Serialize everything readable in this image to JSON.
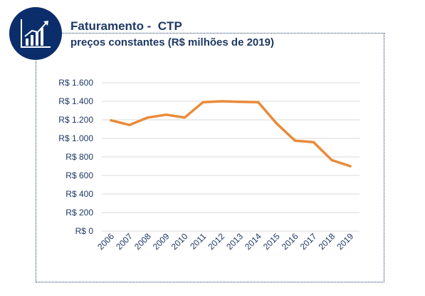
{
  "header": {
    "title": "Faturamento -  CTP",
    "subtitle": "preços constantes (R$ milhões de 2019)",
    "icon": "growth-chart-icon"
  },
  "colors": {
    "line": "#ea8a3a",
    "text": "#1f3864",
    "grid": "#d9d9d9",
    "badge": "#0b2e6b"
  },
  "chart_data": {
    "type": "line",
    "title": "",
    "xlabel": "",
    "ylabel": "",
    "x": [
      "2006",
      "2007",
      "2008",
      "2009",
      "2010",
      "2011",
      "2012",
      "2013",
      "2014",
      "2015",
      "2016",
      "2017",
      "2018",
      "2019"
    ],
    "series": [
      {
        "values": [
          1195,
          1145,
          1225,
          1255,
          1225,
          1390,
          1400,
          1395,
          1390,
          1160,
          975,
          960,
          765,
          700
        ]
      }
    ],
    "ylim": [
      0,
      1600
    ],
    "yticks": [
      0,
      200,
      400,
      600,
      800,
      1000,
      1200,
      1400,
      1600
    ],
    "ytick_labels": [
      "R$ 0",
      "R$ 200",
      "R$ 400",
      "R$ 600",
      "R$ 800",
      "R$ 1.000",
      "R$ 1.200",
      "R$ 1.400",
      "R$ 1.600"
    ],
    "grid": true,
    "legend": "none"
  }
}
